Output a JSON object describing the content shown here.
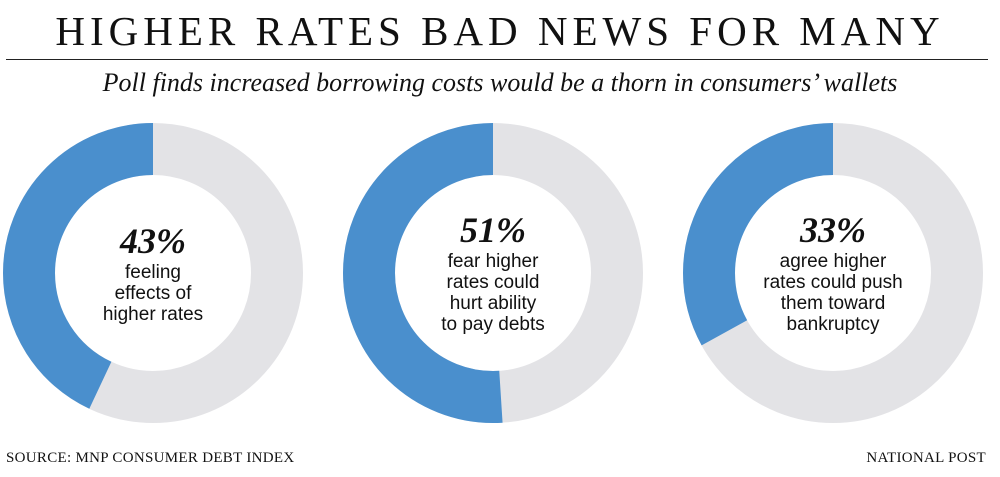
{
  "header": {
    "title": "HIGHER RATES BAD NEWS FOR MANY",
    "subtitle": "Poll finds increased borrowing costs would be a thorn in consumers’ wallets"
  },
  "colors": {
    "highlight": "#4a8fcd",
    "remainder": "#e3e3e6"
  },
  "chart_data": [
    {
      "type": "pie",
      "value": 43,
      "label": "43%",
      "description": "feeling\neffects  of\nhigher rates"
    },
    {
      "type": "pie",
      "value": 51,
      "label": "51%",
      "description": "fear higher\nrates could\nhurt ability\nto pay debts"
    },
    {
      "type": "pie",
      "value": 33,
      "label": "33%",
      "description": "agree higher\nrates could push\nthem toward\nbankruptcy"
    }
  ],
  "footer": {
    "source": "SOURCE: MNP CONSUMER DEBT INDEX",
    "credit": "NATIONAL POST"
  }
}
